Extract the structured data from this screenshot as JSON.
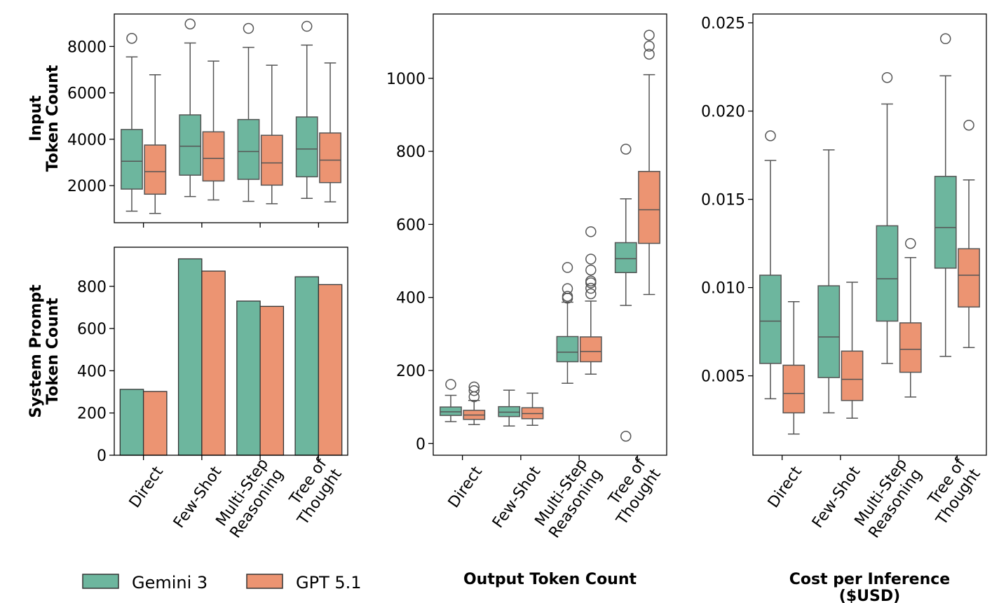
{
  "colors": {
    "gemini": "#6db69e",
    "gpt": "#ec9472",
    "line": "#555555",
    "axis": "#000000"
  },
  "legend": {
    "position": "bottom-left",
    "items": [
      "Gemini 3",
      "GPT 5.1"
    ]
  },
  "chart_data": [
    {
      "id": "input",
      "type": "box",
      "ylabel": [
        "Input",
        "Token Count"
      ],
      "xlabel": "",
      "categories": [
        "Direct",
        "Few-Shot",
        "Multi-Step\nReasoning",
        "Tree of\nThought"
      ],
      "show_xticklabels": false,
      "ylim": [
        400,
        9400
      ],
      "yticks": [
        2000,
        4000,
        6000,
        8000
      ],
      "ytick_labels": [
        "2000",
        "4000",
        "6000",
        "8000"
      ],
      "series": [
        {
          "name": "Gemini 3",
          "boxes": [
            {
              "whislo": 900,
              "q1": 1850,
              "med": 3050,
              "q3": 4420,
              "whishi": 7550,
              "fliers": [
                8350
              ]
            },
            {
              "whislo": 1530,
              "q1": 2450,
              "med": 3700,
              "q3": 5050,
              "whishi": 8150,
              "fliers": [
                8970
              ]
            },
            {
              "whislo": 1320,
              "q1": 2270,
              "med": 3470,
              "q3": 4850,
              "whishi": 7960,
              "fliers": [
                8780
              ]
            },
            {
              "whislo": 1450,
              "q1": 2380,
              "med": 3580,
              "q3": 4960,
              "whishi": 8060,
              "fliers": [
                8870
              ]
            }
          ]
        },
        {
          "name": "GPT 5.1",
          "boxes": [
            {
              "whislo": 800,
              "q1": 1630,
              "med": 2600,
              "q3": 3750,
              "whishi": 6780,
              "fliers": []
            },
            {
              "whislo": 1380,
              "q1": 2200,
              "med": 3170,
              "q3": 4320,
              "whishi": 7370,
              "fliers": []
            },
            {
              "whislo": 1220,
              "q1": 2020,
              "med": 2980,
              "q3": 4170,
              "whishi": 7190,
              "fliers": []
            },
            {
              "whislo": 1300,
              "q1": 2130,
              "med": 3100,
              "q3": 4270,
              "whishi": 7290,
              "fliers": []
            }
          ]
        }
      ]
    },
    {
      "id": "system",
      "type": "bar",
      "ylabel": [
        "System Prompt",
        "Token Count"
      ],
      "xlabel": "",
      "categories": [
        "Direct",
        "Few-Shot",
        "Multi-Step\nReasoning",
        "Tree of\nThought"
      ],
      "show_xticklabels": true,
      "ylim": [
        0,
        985
      ],
      "yticks": [
        0,
        200,
        400,
        600,
        800
      ],
      "ytick_labels": [
        "0",
        "200",
        "400",
        "600",
        "800"
      ],
      "series": [
        {
          "name": "Gemini 3",
          "values": [
            312,
            930,
            730,
            845
          ]
        },
        {
          "name": "GPT 5.1",
          "values": [
            302,
            872,
            705,
            808
          ]
        }
      ]
    },
    {
      "id": "output",
      "type": "box",
      "ylabel": [],
      "xlabel": "Output Token Count",
      "categories": [
        "Direct",
        "Few-Shot",
        "Multi-Step\nReasoning",
        "Tree of\nThought"
      ],
      "show_xticklabels": true,
      "ylim": [
        -32,
        1176
      ],
      "yticks": [
        0,
        200,
        400,
        600,
        800,
        1000
      ],
      "ytick_labels": [
        "0",
        "200",
        "400",
        "600",
        "800",
        "1000"
      ],
      "series": [
        {
          "name": "Gemini 3",
          "boxes": [
            {
              "whislo": 60,
              "q1": 77,
              "med": 87,
              "q3": 100,
              "whishi": 132,
              "fliers": [
                162
              ]
            },
            {
              "whislo": 48,
              "q1": 74,
              "med": 86,
              "q3": 101,
              "whishi": 146,
              "fliers": []
            },
            {
              "whislo": 165,
              "q1": 224,
              "med": 250,
              "q3": 293,
              "whishi": 387,
              "fliers": [
                398,
                403,
                424,
                482
              ]
            },
            {
              "whislo": 378,
              "q1": 468,
              "med": 506,
              "q3": 550,
              "whishi": 670,
              "fliers": [
                20,
                806
              ]
            }
          ]
        },
        {
          "name": "GPT 5.1",
          "boxes": [
            {
              "whislo": 52,
              "q1": 66,
              "med": 78,
              "q3": 91,
              "whishi": 118,
              "fliers": [
                128,
                145,
                155
              ]
            },
            {
              "whislo": 50,
              "q1": 68,
              "med": 82,
              "q3": 98,
              "whishi": 138,
              "fliers": []
            },
            {
              "whislo": 190,
              "q1": 224,
              "med": 252,
              "q3": 292,
              "whishi": 390,
              "fliers": [
                410,
                425,
                440,
                445,
                475,
                505,
                580
              ]
            },
            {
              "whislo": 408,
              "q1": 548,
              "med": 640,
              "q3": 745,
              "whishi": 1010,
              "fliers": [
                1066,
                1088,
                1118
              ]
            }
          ]
        }
      ]
    },
    {
      "id": "cost",
      "type": "box",
      "ylabel": [],
      "xlabel": "Cost per Inference\n($USD)",
      "categories": [
        "Direct",
        "Few-Shot",
        "Multi-Step\nReasoning",
        "Tree of\nThought"
      ],
      "show_xticklabels": true,
      "ylim": [
        0.0005,
        0.0255
      ],
      "yticks": [
        0.005,
        0.01,
        0.015,
        0.02,
        0.025
      ],
      "ytick_labels": [
        "0.005",
        "0.010",
        "0.015",
        "0.020",
        "0.025"
      ],
      "series": [
        {
          "name": "Gemini 3",
          "boxes": [
            {
              "whislo": 0.0037,
              "q1": 0.0057,
              "med": 0.0081,
              "q3": 0.0107,
              "whishi": 0.0172,
              "fliers": [
                0.0186
              ]
            },
            {
              "whislo": 0.0029,
              "q1": 0.0049,
              "med": 0.0072,
              "q3": 0.0101,
              "whishi": 0.0178,
              "fliers": []
            },
            {
              "whislo": 0.0057,
              "q1": 0.0081,
              "med": 0.0105,
              "q3": 0.0135,
              "whishi": 0.0204,
              "fliers": [
                0.0219
              ]
            },
            {
              "whislo": 0.0061,
              "q1": 0.0111,
              "med": 0.0134,
              "q3": 0.0163,
              "whishi": 0.022,
              "fliers": [
                0.0241
              ]
            }
          ]
        },
        {
          "name": "GPT 5.1",
          "boxes": [
            {
              "whislo": 0.0017,
              "q1": 0.0029,
              "med": 0.004,
              "q3": 0.0056,
              "whishi": 0.0092,
              "fliers": []
            },
            {
              "whislo": 0.0026,
              "q1": 0.0036,
              "med": 0.0048,
              "q3": 0.0064,
              "whishi": 0.0103,
              "fliers": []
            },
            {
              "whislo": 0.0038,
              "q1": 0.0052,
              "med": 0.0065,
              "q3": 0.008,
              "whishi": 0.0117,
              "fliers": [
                0.0125
              ]
            },
            {
              "whislo": 0.0066,
              "q1": 0.0089,
              "med": 0.0107,
              "q3": 0.0122,
              "whishi": 0.0161,
              "fliers": [
                0.0192
              ]
            }
          ]
        }
      ]
    }
  ]
}
